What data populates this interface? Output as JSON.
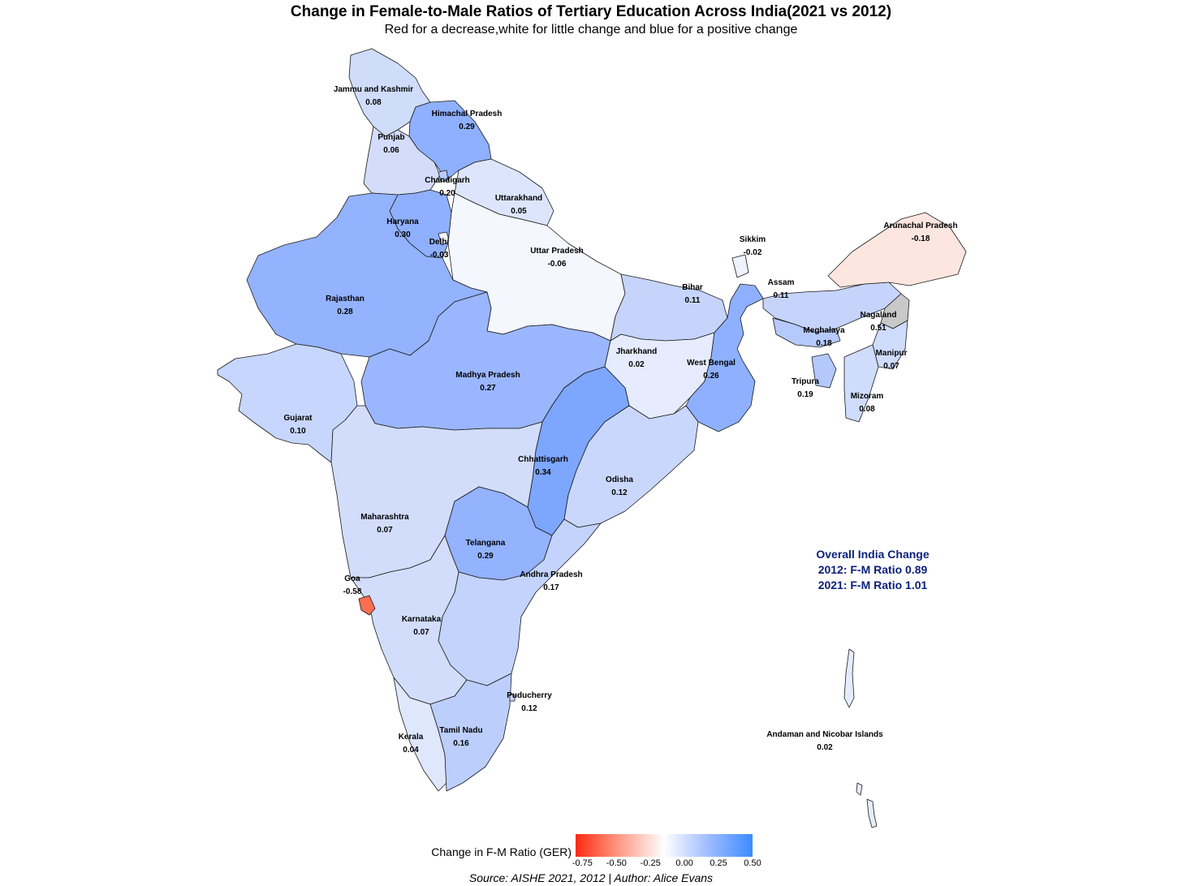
{
  "title": "Change in Female-to-Male Ratios of Tertiary Education Across India(2021 vs 2012)",
  "subtitle": "Red for a decrease,white for little change and blue for a positive change",
  "colors": {
    "negative": "#ff2a12",
    "neutral": "#ffffff",
    "positive": "#3b8cff",
    "missing": "#c8c8c8",
    "summary_text": "#0a1f7a"
  },
  "regions": [
    {
      "name": "Jammu and Kashmir",
      "value": "0.08"
    },
    {
      "name": "Himachal Pradesh",
      "value": "0.29"
    },
    {
      "name": "Punjab",
      "value": "0.06"
    },
    {
      "name": "Chandigarh",
      "value": "0.20"
    },
    {
      "name": "Uttarakhand",
      "value": "0.05"
    },
    {
      "name": "Haryana",
      "value": "0.30"
    },
    {
      "name": "Delhi",
      "value": "-0.03"
    },
    {
      "name": "Uttar Pradesh",
      "value": "-0.06"
    },
    {
      "name": "Rajasthan",
      "value": "0.28"
    },
    {
      "name": "Sikkim",
      "value": "-0.02"
    },
    {
      "name": "Arunachal Pradesh",
      "value": "-0.18"
    },
    {
      "name": "Bihar",
      "value": "0.11"
    },
    {
      "name": "Assam",
      "value": "0.11"
    },
    {
      "name": "Nagaland",
      "value": "0.51"
    },
    {
      "name": "Meghalaya",
      "value": "0.18"
    },
    {
      "name": "Manipur",
      "value": "0.07"
    },
    {
      "name": "Jharkhand",
      "value": "0.02"
    },
    {
      "name": "West Bengal",
      "value": "0.26"
    },
    {
      "name": "Madhya Pradesh",
      "value": "0.27"
    },
    {
      "name": "Tripura",
      "value": "0.19"
    },
    {
      "name": "Mizoram",
      "value": "0.08"
    },
    {
      "name": "Gujarat",
      "value": "0.10"
    },
    {
      "name": "Chhattisgarh",
      "value": "0.34"
    },
    {
      "name": "Odisha",
      "value": "0.12"
    },
    {
      "name": "Maharashtra",
      "value": "0.07"
    },
    {
      "name": "Telangana",
      "value": "0.29"
    },
    {
      "name": "Andhra Pradesh",
      "value": "0.17"
    },
    {
      "name": "Goa",
      "value": "-0.58"
    },
    {
      "name": "Karnataka",
      "value": "0.07"
    },
    {
      "name": "Puducherry",
      "value": "0.12"
    },
    {
      "name": "Tamil Nadu",
      "value": "0.16"
    },
    {
      "name": "Kerala",
      "value": "0.04"
    },
    {
      "name": "Andaman and Nicobar Islands",
      "value": "0.02"
    }
  ],
  "summary": {
    "heading": "Overall India Change",
    "line_2012": "2012: F-M Ratio 0.89",
    "line_2021": "2021: F-M Ratio 1.01"
  },
  "legend": {
    "title": "Change in F-M Ratio (GER)",
    "ticks": [
      "-0.75",
      "-0.50",
      "-0.25",
      "0.00",
      "0.25",
      "0.50"
    ],
    "tick_values": [
      -0.75,
      -0.5,
      -0.25,
      0,
      0.25,
      0.5
    ],
    "range": [
      -0.8,
      0.5
    ]
  },
  "source": "Source: AISHE 2021, 2012 | Author: Alice Evans"
}
